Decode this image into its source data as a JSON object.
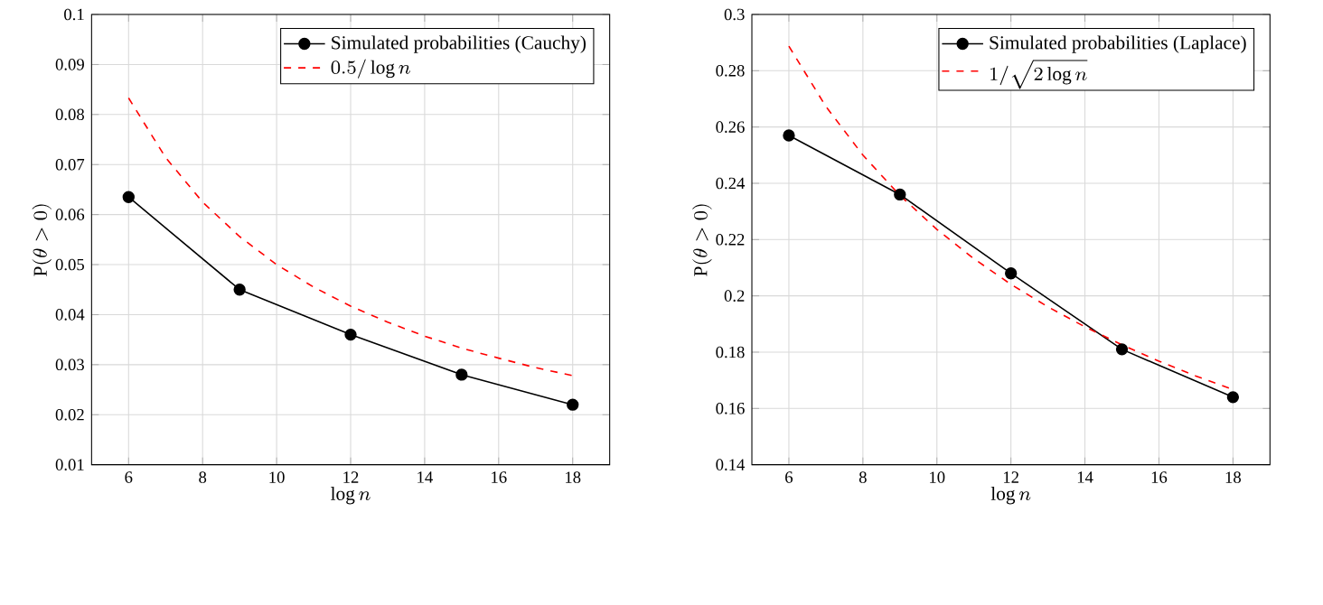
{
  "chart_data": [
    {
      "type": "line",
      "xlabel": "\\log n",
      "ylabel": "\\mathrm{P}(\\theta > 0)",
      "x": [
        6,
        9,
        12,
        15,
        18
      ],
      "xlim": [
        5,
        19
      ],
      "xticks": [
        6,
        8,
        10,
        12,
        14,
        16,
        18
      ],
      "ylim": [
        0.01,
        0.1
      ],
      "yticks": [
        0.01,
        0.02,
        0.03,
        0.04,
        0.05,
        0.06,
        0.07,
        0.08,
        0.09,
        0.1
      ],
      "grid": true,
      "legend": "top right",
      "series": [
        {
          "name": "Simulated probabilities (Cauchy)",
          "color": "#000000",
          "marker": "circle",
          "line_style": "solid",
          "values": [
            0.0635,
            0.045,
            0.036,
            0.028,
            0.022
          ]
        },
        {
          "name": "0.5/\\log n",
          "color": "#ff0000",
          "marker": "none",
          "line_style": "dashed",
          "x": [
            6,
            7,
            8,
            9,
            10,
            11,
            12,
            13,
            14,
            15,
            16,
            17,
            18
          ],
          "values": [
            0.0833,
            0.0714,
            0.0625,
            0.0556,
            0.05,
            0.0455,
            0.0417,
            0.0385,
            0.0357,
            0.0333,
            0.0313,
            0.0294,
            0.0278
          ]
        }
      ]
    },
    {
      "type": "line",
      "xlabel": "\\log n",
      "ylabel": "\\mathrm{P}(\\theta > 0)",
      "x": [
        6,
        9,
        12,
        15,
        18
      ],
      "xlim": [
        5,
        19
      ],
      "xticks": [
        6,
        8,
        10,
        12,
        14,
        16,
        18
      ],
      "ylim": [
        0.14,
        0.3
      ],
      "yticks": [
        0.14,
        0.16,
        0.18,
        0.2,
        0.22,
        0.24,
        0.26,
        0.28,
        0.3
      ],
      "grid": true,
      "legend": "top right",
      "series": [
        {
          "name": "Simulated probabilities (Laplace)",
          "color": "#000000",
          "marker": "circle",
          "line_style": "solid",
          "values": [
            0.257,
            0.236,
            0.208,
            0.181,
            0.164
          ]
        },
        {
          "name": "1/\\sqrt{2\\log n}",
          "color": "#ff0000",
          "marker": "none",
          "line_style": "dashed",
          "x": [
            6,
            7,
            8,
            9,
            10,
            11,
            12,
            13,
            14,
            15,
            16,
            17,
            18
          ],
          "values": [
            0.2887,
            0.2673,
            0.25,
            0.2357,
            0.2236,
            0.2132,
            0.2041,
            0.1961,
            0.189,
            0.1826,
            0.1768,
            0.1715,
            0.1667
          ]
        }
      ]
    }
  ]
}
